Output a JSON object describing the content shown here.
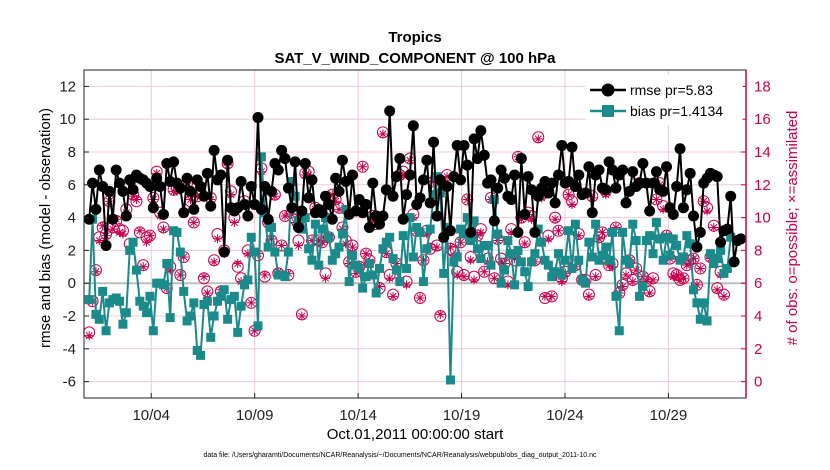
{
  "chart_data": {
    "type": "line",
    "title": "Tropics",
    "subtitle": "SAT_V_WIND_COMPONENT @ 100 hPa",
    "xlabel": "Oct.01,2011 00:00:00 start",
    "ylabel": "rmse and bias (model - observation)",
    "y2label": "# of obs: o=possible; ×=assimilated",
    "footnote": "data file: /Users/gharamti/Documents/NCAR/Reanalysis/~/Documents/NCAR/Reanalysis/webpub/obs_diag_output_2011-10.nc",
    "x_ticks": [
      4,
      9,
      14,
      19,
      24,
      29
    ],
    "x_ticklabels": [
      "10/04",
      "10/09",
      "10/14",
      "10/19",
      "10/24",
      "10/29"
    ],
    "xlim": [
      0.75,
      32.75
    ],
    "ylim": [
      -7,
      13
    ],
    "y_ticks": [
      -6,
      -4,
      -2,
      0,
      2,
      4,
      6,
      8,
      10,
      12
    ],
    "y2lim": [
      -1,
      19
    ],
    "y2_ticks": [
      0,
      2,
      4,
      6,
      8,
      10,
      12,
      14,
      16,
      18
    ],
    "series": [
      {
        "name": "rmse",
        "legend": "rmse pr=5.83",
        "color": "#000000",
        "values": [
          3.9,
          6.1,
          4.5,
          6.9,
          5.9,
          2.3,
          5.6,
          3.9,
          6.9,
          6.1,
          5.6,
          4.1,
          6.3,
          5.7,
          6.6,
          6.4,
          6.3,
          6.1,
          5.9,
          4.6,
          6.4,
          5.9,
          4.2,
          7.3,
          6.2,
          7.4,
          6.1,
          5.8,
          4.3,
          6.4,
          5.6,
          4.5,
          6.3,
          5.9,
          5.3,
          6.7,
          4.7,
          8.1,
          6.3,
          6.6,
          1.9,
          7.5,
          4.6,
          4.4,
          4.6,
          6.2,
          4.8,
          4.1,
          5.9,
          4.8,
          10.1,
          4.5,
          5.9,
          3.9,
          5.6,
          7.3,
          6.9,
          8.1,
          7.6,
          5.8,
          4.6,
          7.4,
          3.4,
          4.4,
          7.3,
          5.2,
          6.3,
          4.3,
          4.5,
          4.3,
          5.3,
          4.8,
          3.9,
          6.4,
          5.6,
          7.5,
          6.2,
          4.2,
          6.6,
          4.4,
          5.1,
          4.3,
          4.8,
          3.4,
          6.1,
          4.1,
          3.6,
          4.1,
          5.7,
          10.5,
          5.3,
          6.5,
          7.6,
          3.9,
          5.4,
          6.6,
          9.6,
          4.8,
          5.2,
          6.3,
          7.5,
          4.9,
          8.6,
          4.1,
          6.3,
          2.8,
          5.9,
          3.2,
          6.5,
          8.4,
          6.3,
          8.4,
          7.2,
          3.1,
          8.8,
          7.6,
          9.3,
          7.8,
          6.1,
          6.3,
          3.8,
          5.8,
          6.9,
          6.4,
          5.3,
          5.1,
          6.6,
          3.1,
          7.6,
          4.2,
          6.5,
          5.7,
          3.1,
          5.3,
          5.8,
          6.2,
          5.5,
          6.1,
          4.9,
          6.6,
          8.4,
          6.1,
          6.2,
          8.3,
          5.9,
          6.6,
          5.4,
          5.5,
          7.1,
          4.3,
          6.6,
          6.9,
          5.8,
          5.7,
          7.4,
          6.9,
          5.8,
          6.6,
          6.9,
          4.9,
          5.6,
          6.8,
          5.9,
          6.1,
          7.3,
          6.1,
          4.4,
          6.1,
          6.8,
          5.7,
          5.6,
          7.1,
          4.6,
          4.2,
          5.9,
          8.2,
          4.6,
          5.7,
          6.7,
          4.1,
          2.2,
          3.1,
          6.1,
          6.4,
          6.7,
          6.6,
          6.5,
          2.5,
          3.2,
          3.3,
          5.3,
          1.3,
          2.6,
          2.7
        ]
      },
      {
        "name": "bias",
        "legend": "bias pr=1.4134",
        "color": "#1a8a8a",
        "values": [
          -1.0,
          3.9,
          -1.9,
          -2.2,
          -0.5,
          -2.9,
          -1.2,
          -1.0,
          -0.9,
          -1.1,
          -2.5,
          -1.8,
          2.0,
          2.5,
          0.8,
          -1.1,
          -1.4,
          -1.8,
          -0.8,
          -2.9,
          0.0,
          0.0,
          -0.1,
          1.2,
          -2.1,
          3.2,
          3.1,
          1.9,
          -0.5,
          -2.3,
          -2.0,
          -1.2,
          -4.1,
          -4.4,
          -1.3,
          -1.1,
          -3.3,
          -2.0,
          -1.1,
          -0.8,
          -0.4,
          -2.2,
          -1.0,
          -0.8,
          -3.0,
          -1.4,
          -0.1,
          0.2,
          2.8,
          1.9,
          -2.6,
          7.7,
          4.3,
          2.2,
          3.4,
          1.9,
          0.5,
          0.5,
          0.4,
          1.9,
          6.2,
          5.3,
          3.8,
          3.3,
          4.0,
          2.1,
          1.4,
          3.6,
          1.1,
          3.3,
          4.0,
          2.8,
          1.4,
          1.8,
          2.2,
          3.0,
          4.5,
          0.1,
          1.7,
          1.1,
          0.9,
          -0.3,
          0.4,
          1.2,
          0.5,
          -0.6,
          0.9,
          2.1,
          2.5,
          2.8,
          1.5,
          0.8,
          0.1,
          2.9,
          0.9,
          4.0,
          1.6,
          3.4,
          3.1,
          0.1,
          2.1,
          3.3,
          5.4,
          6.5,
          5.5,
          0.6,
          3.4,
          -5.9,
          1.3,
          1.6,
          3.3,
          3.0,
          4.0,
          2.6,
          3.8,
          2.1,
          1.5,
          2.3,
          2.3,
          1.1,
          5.1,
          3.0,
          0.0,
          0.8,
          2.6,
          1.8,
          -0.1,
          2.0,
          1.3,
          0.7,
          -0.2,
          1.3,
          1.8,
          3.3,
          2.5,
          1.4,
          1.1,
          0.4,
          0.7,
          1.8,
          0.5,
          1.4,
          3.2,
          0.9,
          3.6,
          1.4,
          0.2,
          0.0,
          2.5,
          1.6,
          3.6,
          1.4,
          1.7,
          2.2,
          1.4,
          3.1,
          -0.8,
          -2.9,
          3.1,
          1.4,
          1.2,
          3.6,
          2.6,
          -0.8,
          -0.2,
          2.6,
          2.9,
          1.8,
          3.7,
          2.7,
          1.4,
          2.8,
          1.7,
          2.7,
          2.3,
          1.4,
          1.6,
          2.9,
          2.4,
          -0.4,
          -1.2,
          -2.2,
          -1.2,
          -2.3,
          1.8,
          1.2,
          1.5,
          2.0,
          0.6,
          0.9,
          2.8
        ]
      },
      {
        "name": "obs possible",
        "axis": "right",
        "marker": "o",
        "color": "#c8004e",
        "values": [
          3.0,
          4.9,
          6.8,
          8.8,
          9.4,
          9.0,
          11.0,
          9.4,
          9.8,
          9.3,
          9.2,
          10.5,
          8.4,
          11.4,
          11.0,
          9.1,
          7.1,
          8.8,
          8.9,
          11.2,
          12.8,
          10.3,
          9.4,
          5.7,
          7.0,
          11.7,
          11.8,
          6.5,
          7.6,
          12.1,
          11.0,
          9.7,
          11.3,
          11.5,
          6.3,
          5.5,
          11.2,
          7.4,
          9.0,
          5.5,
          8.0,
          13.3,
          11.6,
          10.0,
          7.0,
          6.3,
          11.0,
          8.0,
          4.8,
          3.1,
          7.7,
          13.0,
          6.4,
          9.7,
          8.6,
          11.4,
          6.6,
          8.3,
          10.1,
          6.5,
          10.3,
          9.9,
          8.6,
          4.1,
          12.7,
          12.8,
          8.6,
          10.6,
          8.6,
          8.5,
          6.6,
          8.8,
          11.4,
          11.1,
          10.6,
          9.4,
          8.6,
          7.3,
          8.3,
          6.7,
          7.0,
          13.1,
          7.8,
          7.4,
          10.1,
          9.6,
          5.7,
          15.2,
          7.9,
          6.5,
          5.3,
          7.2,
          12.6,
          12.8,
          6.1,
          13.6,
          10.2,
          9.2,
          5.1,
          7.4,
          9.2,
          8.1,
          12.2,
          8.3,
          4.0,
          11.8,
          12.6,
          8.1,
          7.9,
          6.7,
          8.5,
          6.5,
          11.1,
          7.6,
          6.4,
          8.9,
          9.3,
          6.7,
          7.5,
          11.2,
          6.3,
          8.7,
          7.5,
          7.2,
          6.1,
          9.3,
          7.4,
          13.7,
          10.0,
          8.5,
          10.3,
          10.1,
          7.4,
          14.9,
          11.4,
          5.1,
          8.9,
          5.2,
          10.0,
          9.2,
          6.3,
          6.7,
          11.4,
          11.0,
          7.1,
          9.0,
          6.2,
          6.2,
          5.3,
          11.3,
          6.5,
          8.8,
          9.1,
          11.6,
          7.1,
          7.2,
          9.4,
          5.4,
          5.9,
          6.6,
          7.4,
          6.2,
          6.9,
          12.1,
          6.4,
          6.1,
          5.5,
          6.3,
          11.1,
          12.1,
          10.7,
          8.9,
          7.5,
          6.6,
          6.5,
          6.2,
          6.3,
          7.1,
          7.4,
          7.5,
          5.9,
          6.9,
          11.0,
          10.6,
          7.6,
          9.5,
          5.7,
          6.7,
          5.3
        ]
      },
      {
        "name": "obs assimilated",
        "axis": "right",
        "marker": "*",
        "color": "#c8004e",
        "values": [
          2.8,
          4.9,
          6.7,
          8.6,
          9.5,
          8.9,
          11.0,
          9.3,
          9.9,
          9.1,
          9.0,
          10.3,
          8.1,
          11.3,
          11.1,
          9.2,
          7.0,
          8.5,
          8.9,
          11.1,
          12.7,
          10.1,
          9.3,
          5.7,
          6.8,
          11.6,
          11.6,
          6.5,
          7.6,
          12.1,
          11.1,
          9.7,
          11.3,
          11.3,
          6.4,
          5.4,
          11.1,
          7.3,
          8.7,
          5.6,
          7.8,
          13.2,
          11.4,
          9.7,
          7.2,
          6.1,
          10.9,
          7.8,
          4.8,
          3.1,
          7.8,
          12.8,
          6.5,
          9.6,
          8.7,
          11.3,
          6.7,
          8.3,
          10.1,
          6.6,
          10.2,
          9.7,
          8.3,
          4.0,
          12.6,
          12.6,
          8.6,
          10.5,
          8.6,
          8.5,
          6.3,
          8.8,
          11.4,
          11.0,
          10.5,
          9.3,
          8.4,
          7.2,
          8.2,
          6.6,
          7.1,
          13.1,
          7.8,
          7.3,
          9.9,
          9.7,
          5.8,
          15.1,
          7.8,
          6.3,
          5.2,
          7.2,
          12.6,
          12.6,
          5.9,
          13.5,
          10.0,
          9.2,
          5.1,
          7.4,
          9.0,
          8.2,
          12.2,
          8.2,
          4.1,
          11.9,
          12.5,
          8.2,
          7.7,
          6.5,
          8.5,
          6.4,
          11.1,
          7.4,
          6.2,
          8.9,
          9.1,
          6.7,
          7.3,
          11.1,
          6.3,
          8.6,
          7.3,
          7.2,
          5.9,
          9.1,
          7.5,
          13.7,
          9.9,
          8.4,
          10.2,
          9.9,
          7.3,
          14.8,
          11.2,
          5.2,
          8.7,
          5.2,
          9.9,
          9.2,
          6.1,
          6.6,
          11.4,
          10.8,
          7.0,
          8.9,
          6.2,
          6.1,
          5.2,
          11.2,
          6.4,
          8.7,
          9.1,
          11.4,
          7.1,
          7.0,
          9.4,
          5.4,
          5.8,
          6.5,
          7.4,
          6.1,
          6.8,
          12.1,
          6.4,
          6.1,
          5.4,
          6.2,
          11.1,
          12.0,
          10.5,
          8.9,
          7.5,
          6.4,
          6.5,
          6.2,
          6.3,
          7.1,
          7.2,
          7.5,
          5.9,
          6.9,
          11.0,
          10.4,
          7.5,
          9.4,
          5.6,
          6.5,
          5.2
        ]
      }
    ]
  }
}
